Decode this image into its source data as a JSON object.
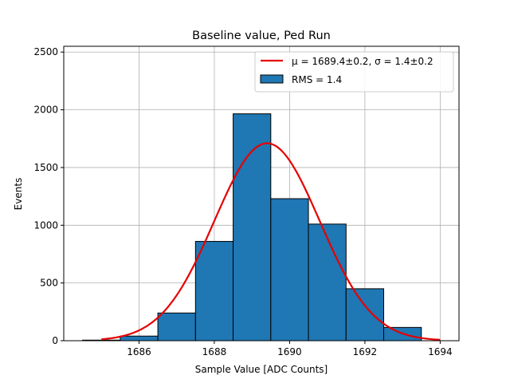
{
  "chart_data": {
    "type": "bar",
    "title": "Baseline value, Ped Run",
    "xlabel": "Sample Value [ADC Counts]",
    "ylabel": "Events",
    "xlim": [
      1684.0,
      1694.5
    ],
    "ylim": [
      0,
      2550
    ],
    "grid": true,
    "legend_position": "top-right",
    "xticks": [
      1686,
      1688,
      1690,
      1692,
      1694
    ],
    "yticks": [
      0,
      500,
      1000,
      1500,
      2000,
      2500
    ],
    "bins": [
      {
        "x0": 1684.5,
        "x1": 1685.5,
        "value": 5
      },
      {
        "x0": 1685.5,
        "x1": 1686.5,
        "value": 40
      },
      {
        "x0": 1686.5,
        "x1": 1687.5,
        "value": 240
      },
      {
        "x0": 1687.5,
        "x1": 1688.5,
        "value": 860
      },
      {
        "x0": 1688.5,
        "x1": 1689.5,
        "value": 1965
      },
      {
        "x0": 1689.5,
        "x1": 1690.5,
        "value": 1230
      },
      {
        "x0": 1690.5,
        "x1": 1691.5,
        "value": 1010
      },
      {
        "x0": 1691.5,
        "x1": 1692.5,
        "value": 450
      },
      {
        "x0": 1692.5,
        "x1": 1693.5,
        "value": 115
      }
    ],
    "fit": {
      "mu": 1689.4,
      "sigma": 1.4,
      "amplitude": 1710,
      "x_range": [
        1685,
        1694
      ]
    },
    "legend": [
      {
        "label": "μ = 1689.4±0.2, σ = 1.4±0.2",
        "kind": "line",
        "color": "#e60000"
      },
      {
        "label": "RMS = 1.4",
        "kind": "patch",
        "color": "#1f77b4"
      }
    ],
    "colors": {
      "bar": "#1f77b4",
      "bar_edge": "#000000",
      "fit": "#e60000",
      "grid": "#b0b0b0"
    }
  }
}
